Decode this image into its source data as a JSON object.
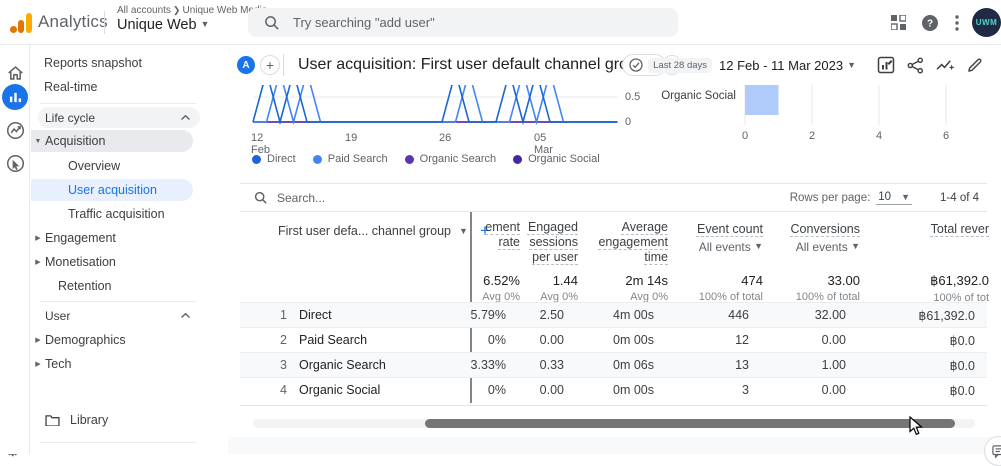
{
  "topbar": {
    "product": "Analytics",
    "breadcrumb_small": "All accounts",
    "breadcrumb_org": "Unique Web Media",
    "property_name": "Unique Web",
    "search_placeholder": "Try searching \"add user\"",
    "avatar_text": "UWM"
  },
  "header": {
    "badge": "A",
    "title": "User acquisition: First user default channel group",
    "date_chip": "Last 28 days",
    "date_range": "12 Feb - 11 Mar 2023"
  },
  "sidebar": {
    "items": [
      {
        "label": "Reports snapshot"
      },
      {
        "label": "Real-time"
      }
    ],
    "lifecycle": {
      "label": "Life cycle",
      "acquisition": "Acquisition",
      "children": [
        "Overview",
        "User acquisition",
        "Traffic acquisition"
      ],
      "others": [
        "Engagement",
        "Monetisation",
        "Retention"
      ]
    },
    "user_section": {
      "label": "User",
      "items": [
        "Demographics",
        "Tech"
      ]
    },
    "library": "Library"
  },
  "icons": {
    "topbar": [
      "apps-grid-icon",
      "help-icon",
      "kebab-menu-icon",
      "avatar"
    ],
    "header_actions": [
      "report-snapshot-edit-icon",
      "share-icon",
      "insights-icon",
      "edit-report-icon"
    ]
  },
  "chart_data": [
    {
      "type": "line",
      "x_ticks": [
        "12 Feb",
        "19",
        "26",
        "05 Mar"
      ],
      "y_ticks": [
        "0.5",
        "0"
      ],
      "y_axis_visible_range": [
        0,
        0.6
      ],
      "legend": [
        "Direct",
        "Paid Search",
        "Organic Search",
        "Organic Social"
      ],
      "colors": [
        "#1967d2",
        "#4285f4",
        "#5e35b1",
        "#4527a0"
      ],
      "note": "daily users per channel, chart top clipped by sticky header",
      "series": [
        {
          "name": "Direct",
          "values": [
            0,
            1,
            0,
            1,
            0,
            0,
            0,
            0,
            0,
            0,
            0,
            0,
            0,
            0,
            0,
            1,
            0,
            0,
            0,
            1,
            0,
            1,
            0,
            0,
            0,
            0,
            0,
            0
          ]
        },
        {
          "name": "Paid Search",
          "values": [
            0,
            0,
            1,
            0,
            1,
            0,
            0,
            0,
            0,
            0,
            0,
            0,
            0,
            0,
            0,
            0,
            1,
            0,
            0,
            0,
            1,
            0,
            1,
            0,
            0,
            0,
            0,
            0
          ]
        },
        {
          "name": "Organic Search",
          "values": [
            0,
            0,
            0,
            0,
            0,
            0,
            0,
            0,
            0,
            0,
            0,
            0,
            0,
            0,
            0,
            0,
            0,
            0,
            0,
            0,
            0,
            0,
            0,
            0,
            0,
            0,
            0,
            0
          ]
        },
        {
          "name": "Organic Social",
          "values": [
            0,
            0,
            0,
            0,
            0,
            0,
            0,
            0,
            0,
            0,
            0,
            0,
            0,
            0,
            0,
            0,
            0,
            0,
            0,
            0,
            0,
            0,
            0,
            0,
            0,
            0,
            0,
            0
          ]
        }
      ]
    },
    {
      "type": "bar",
      "orientation": "horizontal",
      "categories": [
        "Organic Social"
      ],
      "values": [
        1
      ],
      "x_ticks": [
        0,
        2,
        4,
        6
      ],
      "bar_color": "#aecbfa"
    }
  ],
  "table": {
    "search_placeholder": "Search...",
    "rows_label": "Rows per page:",
    "rows_value": "10",
    "pagination": "1-4 of 4",
    "dimension_header": "First user defa... channel group",
    "row_numbers": [
      "1",
      "2",
      "3",
      "4"
    ],
    "row_names": [
      "Direct",
      "Paid Search",
      "Organic Search",
      "Organic Social"
    ],
    "columns": [
      {
        "header": "ement rate",
        "total": "6.52%",
        "total_sub": "Avg 0%",
        "values": [
          "5.79%",
          "0%",
          "3.33%",
          "0%"
        ]
      },
      {
        "header": "Engaged sessions per user",
        "total": "1.44",
        "total_sub": "Avg 0%",
        "values": [
          "2.50",
          "0.00",
          "0.33",
          "0.00"
        ]
      },
      {
        "header": "Average engagement time",
        "total": "2m 14s",
        "total_sub": "Avg 0%",
        "values": [
          "4m 00s",
          "0m 00s",
          "0m 06s",
          "0m 00s"
        ]
      },
      {
        "header": "Event count",
        "subheader": "All events",
        "total": "474",
        "total_sub": "100% of total",
        "values": [
          "446",
          "12",
          "13",
          "3"
        ]
      },
      {
        "header": "Conversions",
        "subheader": "All events",
        "total": "33.00",
        "total_sub": "100% of total",
        "values": [
          "32.00",
          "0.00",
          "1.00",
          "0.00"
        ]
      },
      {
        "header": "Total rever",
        "total": "฿61,392.0",
        "total_sub": "100% of tot",
        "values": [
          "฿61,392.0",
          "฿0.0",
          "฿0.0",
          "฿0.0"
        ]
      }
    ]
  }
}
